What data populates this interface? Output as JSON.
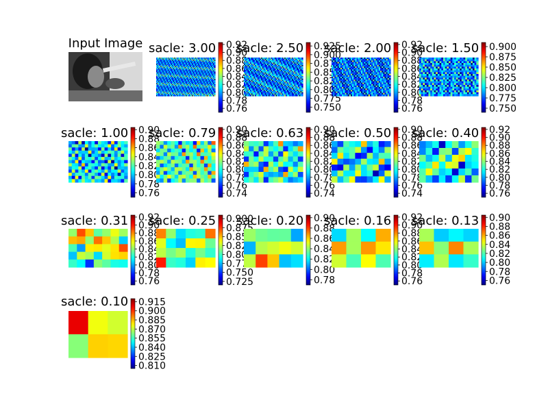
{
  "chart_data": {
    "type": "heatmap",
    "colormap": "jet",
    "input_panel": {
      "title": "Input Image"
    },
    "panels": [
      {
        "title": "sacle: 3.00",
        "ticks": [
          "0.92",
          "0.90",
          "0.88",
          "0.86",
          "0.84",
          "0.82",
          "0.80",
          "0.78",
          "0.76"
        ],
        "range": [
          0.75,
          0.925
        ]
      },
      {
        "title": "sacle: 2.50",
        "ticks": [
          "0.925",
          "0.900",
          "0.875",
          "0.850",
          "0.825",
          "0.800",
          "0.775",
          "0.750"
        ],
        "range": [
          0.735,
          0.935
        ]
      },
      {
        "title": "sacle: 2.00",
        "ticks": [
          "0.92",
          "0.90",
          "0.88",
          "0.86",
          "0.84",
          "0.82",
          "0.80",
          "0.78",
          "0.76"
        ],
        "range": [
          0.75,
          0.925
        ]
      },
      {
        "title": "sacle: 1.50",
        "ticks": [
          "0.900",
          "0.875",
          "0.850",
          "0.825",
          "0.800",
          "0.775",
          "0.750"
        ],
        "range": [
          0.74,
          0.91
        ]
      },
      {
        "title": "sacle: 1.00",
        "ticks": [
          "0.90",
          "0.88",
          "0.86",
          "0.84",
          "0.82",
          "0.80",
          "0.78",
          "0.76"
        ],
        "range": [
          0.75,
          0.905
        ]
      },
      {
        "title": "sacle: 0.79",
        "ticks": [
          "0.90",
          "0.88",
          "0.86",
          "0.84",
          "0.82",
          "0.80",
          "0.78",
          "0.76",
          "0.74"
        ],
        "range": [
          0.73,
          0.905
        ]
      },
      {
        "title": "sacle: 0.63",
        "ticks": [
          "0.90",
          "0.88",
          "0.86",
          "0.84",
          "0.82",
          "0.80",
          "0.78",
          "0.76",
          "0.74"
        ],
        "range": [
          0.73,
          0.905
        ]
      },
      {
        "title": "sacle: 0.50",
        "ticks": [
          "0.90",
          "0.88",
          "0.86",
          "0.84",
          "0.82",
          "0.80",
          "0.78",
          "0.76",
          "0.74"
        ],
        "range": [
          0.73,
          0.905
        ]
      },
      {
        "title": "sacle: 0.40",
        "ticks": [
          "0.92",
          "0.90",
          "0.88",
          "0.86",
          "0.84",
          "0.82",
          "0.80",
          "0.78",
          "0.76"
        ],
        "range": [
          0.75,
          0.925
        ]
      },
      {
        "title": "sacle: 0.31",
        "ticks": [
          "0.92",
          "0.90",
          "0.88",
          "0.86",
          "0.84",
          "0.82",
          "0.80",
          "0.78",
          "0.76"
        ],
        "range": [
          0.75,
          0.925
        ]
      },
      {
        "title": "sacle: 0.25",
        "ticks": [
          "0.900",
          "0.875",
          "0.850",
          "0.825",
          "0.800",
          "0.775",
          "0.750",
          "0.725"
        ],
        "range": [
          0.715,
          0.91
        ]
      },
      {
        "title": "sacle: 0.20",
        "ticks": [
          "0.90",
          "0.88",
          "0.86",
          "0.84",
          "0.82",
          "0.80",
          "0.78"
        ],
        "range": [
          0.77,
          0.905
        ]
      },
      {
        "title": "sacle: 0.16",
        "ticks": [
          "0.92",
          "0.90",
          "0.88",
          "0.86",
          "0.84",
          "0.82",
          "0.80",
          "0.78",
          "0.76"
        ],
        "range": [
          0.75,
          0.925
        ]
      },
      {
        "title": "sacle: 0.13",
        "ticks": [
          "0.90",
          "0.88",
          "0.86",
          "0.84",
          "0.82",
          "0.80",
          "0.78",
          "0.76"
        ],
        "range": [
          0.75,
          0.905
        ]
      },
      {
        "title": "sacle: 0.10",
        "ticks": [
          "0.915",
          "0.900",
          "0.885",
          "0.870",
          "0.855",
          "0.840",
          "0.825",
          "0.810"
        ],
        "range": [
          0.805,
          0.92
        ]
      }
    ]
  }
}
